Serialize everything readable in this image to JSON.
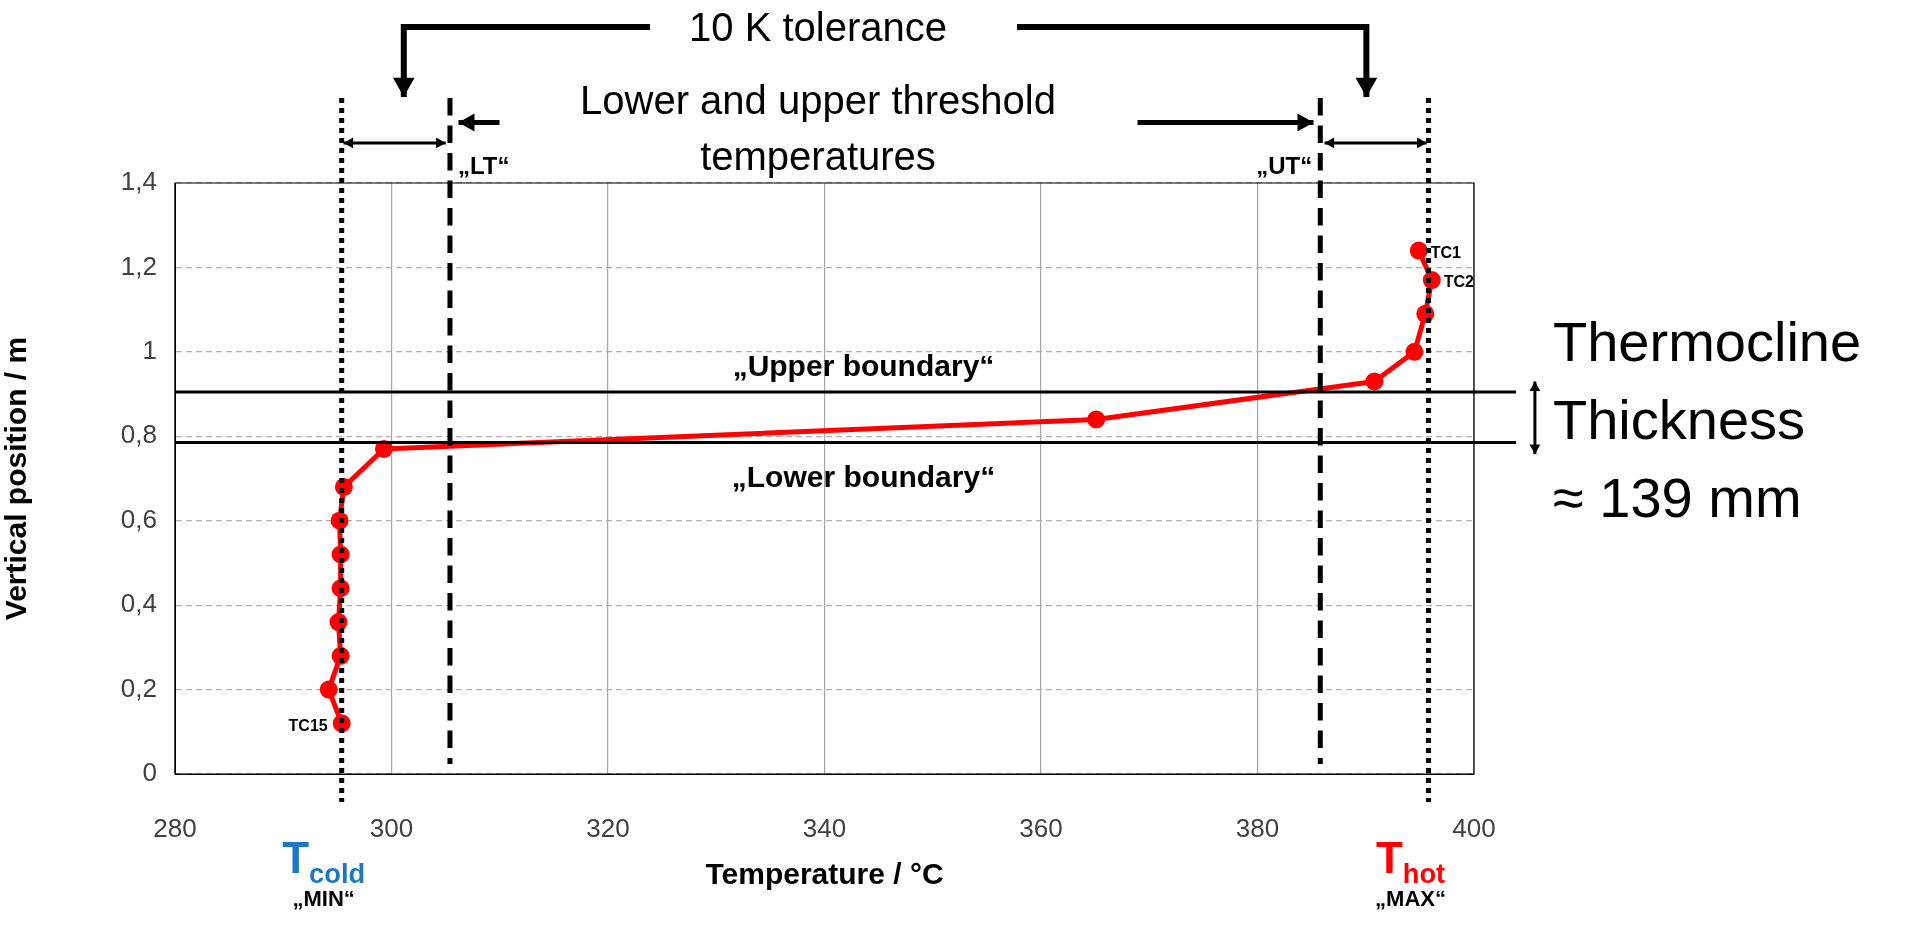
{
  "chart_data": {
    "type": "line",
    "xlabel": "Temperature / °C",
    "ylabel": "Vertical position / m",
    "series": [
      {
        "color": "#ff0000",
        "x": [
          394.9,
          396.1,
          395.5,
          394.5,
          390.8,
          365.1,
          299.3,
          295.6,
          295.2,
          295.3,
          295.3,
          295.1,
          295.3,
          294.2,
          295.4
        ],
        "values": [
          1.24,
          1.17,
          1.09,
          1.0,
          0.93,
          0.84,
          0.77,
          0.68,
          0.6,
          0.52,
          0.44,
          0.36,
          0.28,
          0.2,
          0.12
        ]
      }
    ],
    "xlim": [
      280,
      400
    ],
    "xticks": [
      280,
      300,
      320,
      340,
      360,
      380,
      400
    ],
    "ylim": [
      0,
      1.4
    ],
    "yticks": [
      0,
      {
        "value": 0.2,
        "label": "0,2"
      },
      {
        "value": 0.4,
        "label": "0,4"
      },
      {
        "value": 0.6,
        "label": "0,6"
      },
      {
        "value": 0.8,
        "label": "0,8"
      },
      1,
      {
        "value": 1.2,
        "label": "1,2"
      },
      {
        "value": 1.4,
        "label": "1,4"
      }
    ],
    "grid": true,
    "legend": false,
    "marker": "circle",
    "line_style": "solid",
    "ref_lines": [
      {
        "axis": "x",
        "value": 295.4,
        "label": "T$_{cold}$\n„MIN“",
        "color": "#000000",
        "line_style": "dotted"
      },
      {
        "axis": "x",
        "value": 305.4,
        "label": "„LT“",
        "color": "#000000",
        "line_style": "dashed"
      },
      {
        "axis": "x",
        "value": 385.8,
        "label": "„UT“",
        "color": "#000000",
        "line_style": "dashed"
      },
      {
        "axis": "x",
        "value": 395.8,
        "label": "T$_{hot}$\n„MAX“",
        "color": "#000000",
        "line_style": "dotted"
      },
      {
        "axis": "y",
        "value": 0.905,
        "label": "„Upper boundary“",
        "color": "#000000",
        "line_style": "solid"
      },
      {
        "axis": "y",
        "value": 0.785,
        "label": "„Lower boundary“",
        "color": "#000000",
        "line_style": "solid"
      }
    ],
    "annotations": [
      "10 K tolerance",
      "Lower and upper threshold temperatures",
      "Thermocline Thickness ≈ 139 mm",
      {
        "text": "TC1",
        "x": 394.9,
        "y": 1.24
      },
      {
        "text": "TC2",
        "x": 396.1,
        "y": 1.17
      },
      {
        "text": "TC15",
        "x": 295.4,
        "y": 0.12
      }
    ]
  }
}
